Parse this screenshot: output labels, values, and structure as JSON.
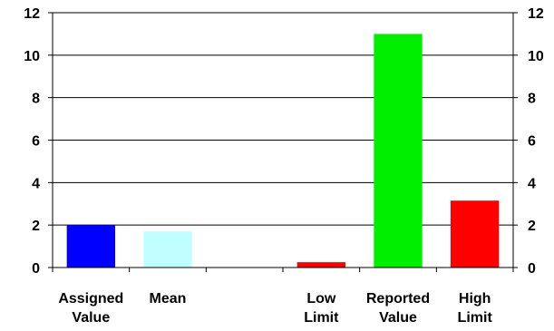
{
  "chart_data": {
    "type": "bar",
    "categories": [
      [
        "Assigned",
        "Value"
      ],
      [
        "Mean"
      ],
      [],
      [
        "Low",
        "Limit"
      ],
      [
        "Reported",
        "Value"
      ],
      [
        "High",
        "Limit"
      ]
    ],
    "values": [
      2.0,
      1.7,
      0.0,
      0.25,
      11.0,
      3.15
    ],
    "colors": [
      "#0000ff",
      "#c0ffff",
      "#808080",
      "#ff0000",
      "#00ee00",
      "#ff0000"
    ],
    "ylim": [
      0,
      12
    ],
    "yticks": [
      0,
      2,
      4,
      6,
      8,
      10,
      12
    ],
    "grid": true,
    "secondary_y_axis": true,
    "legend": "none"
  }
}
